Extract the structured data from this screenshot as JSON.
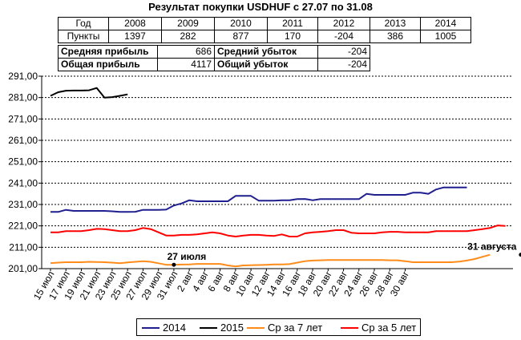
{
  "title": "Результат покупки USDHUF с 27.07 по 31.08",
  "year_table": {
    "row_labels": [
      "Год",
      "Пункты"
    ],
    "years": [
      "2008",
      "2009",
      "2010",
      "2011",
      "2012",
      "2013",
      "2014"
    ],
    "points": [
      "1397",
      "282",
      "877",
      "170",
      "-204",
      "386",
      "1005"
    ]
  },
  "stats": {
    "avg_profit_label": "Средняя прибыль",
    "avg_profit": "686",
    "avg_loss_label": "Средний убыток",
    "avg_loss": "-204",
    "total_profit_label": "Общая прибыль",
    "total_profit": "4117",
    "total_loss_label": "Общий убыток",
    "total_loss": "-204"
  },
  "chart_data": {
    "type": "line",
    "title": "Результат покупки USDHUF с 27.07 по 31.08",
    "ylim": [
      201,
      291
    ],
    "y_ticks": [
      "201,00",
      "211,00",
      "221,00",
      "231,00",
      "241,00",
      "251,00",
      "261,00",
      "271,00",
      "281,00",
      "291,00"
    ],
    "x_tick_labels": [
      "15 июл",
      "17 июл",
      "19 июл",
      "21 июл",
      "23 июл",
      "25 июл",
      "27 июл",
      "29 июл",
      "31 июл",
      "2 авг",
      "4 авг",
      "6 авг",
      "8 авг",
      "10 авг",
      "12 авг",
      "14 авг",
      "16 авг",
      "18 авг",
      "20 авг",
      "22 авг",
      "24 авг",
      "26 авг",
      "28 авг",
      "30 авг"
    ],
    "grid": "horizontal dashed",
    "legend_position": "bottom",
    "series": [
      {
        "name": "2014",
        "color": "#1f1f8f",
        "start_index": 0,
        "values": [
          227.5,
          227.5,
          228.5,
          228,
          228,
          228,
          228,
          228,
          227.8,
          227.5,
          227.5,
          227.6,
          228.5,
          228.5,
          228.5,
          228.6,
          230.5,
          231.5,
          233,
          232.5,
          232.5,
          232.5,
          232.5,
          232.5,
          235,
          235,
          235,
          232.8,
          232.8,
          232.8,
          233,
          233,
          233.5,
          233.6,
          233,
          233.5,
          233.5,
          233.5,
          233.5,
          233.5,
          233.5,
          236,
          235.5,
          235.5,
          235.5,
          235.5,
          235.5,
          236.5,
          236.5,
          236,
          238,
          239,
          239,
          239,
          239
        ]
      },
      {
        "name": "2015",
        "color": "#000000",
        "start_index": 0,
        "values": [
          281.8,
          283.5,
          284.2,
          284.3,
          284.3,
          284.4,
          285.5,
          281,
          281.2,
          281.8,
          282.5
        ]
      },
      {
        "name": "Ср за 7 лет",
        "color": "#ff8c1a",
        "start_index": 0,
        "values": [
          203.6,
          203.8,
          204,
          204,
          204,
          204.2,
          204.1,
          204,
          203.8,
          203.5,
          203.9,
          204.2,
          204.5,
          204.2,
          203.5,
          202.8,
          202.8,
          202.9,
          203,
          203.2,
          203.2,
          203.2,
          203.2,
          202.5,
          202,
          202.5,
          202.6,
          202.7,
          202.8,
          203,
          203,
          203.1,
          203.8,
          204.5,
          204.8,
          204.9,
          205,
          205,
          205,
          205,
          205,
          205,
          205,
          205,
          204.9,
          204.9,
          204.5,
          204,
          204,
          204,
          204,
          204,
          204,
          204.3,
          204.8,
          205.5,
          206.5,
          207.5
        ]
      },
      {
        "name": "Ср за 5 лет",
        "color": "#ff0000",
        "start_index": 0,
        "values": [
          218,
          218,
          218.5,
          218.5,
          218.5,
          219,
          219.6,
          219.5,
          219,
          218.5,
          218.5,
          219,
          220,
          219.5,
          218,
          216.5,
          216.5,
          216.8,
          216.8,
          217,
          217.5,
          218,
          217.5,
          216.5,
          216,
          216.5,
          216.8,
          216.8,
          216.5,
          216.3,
          217,
          216,
          216,
          217.5,
          218,
          218.2,
          218.5,
          219,
          219,
          217.8,
          217.5,
          217.5,
          217.5,
          218,
          218.2,
          218.2,
          218,
          218,
          218,
          218,
          218.5,
          218.5,
          218.5,
          218.5,
          218.5,
          219,
          219.5,
          220,
          221.2,
          221
        ]
      }
    ],
    "annotations": [
      {
        "text": "27 июля",
        "x_index": 16,
        "value": 202.8
      },
      {
        "text": "31 августа",
        "x_index": 61,
        "value": 207.5
      }
    ]
  },
  "legend": {
    "items": [
      {
        "label": "2014",
        "color": "#1f1f8f"
      },
      {
        "label": "2015",
        "color": "#000000"
      },
      {
        "label": "Ср за 7 лет",
        "color": "#ff8c1a"
      },
      {
        "label": "Ср за 5 лет",
        "color": "#ff0000"
      }
    ]
  }
}
